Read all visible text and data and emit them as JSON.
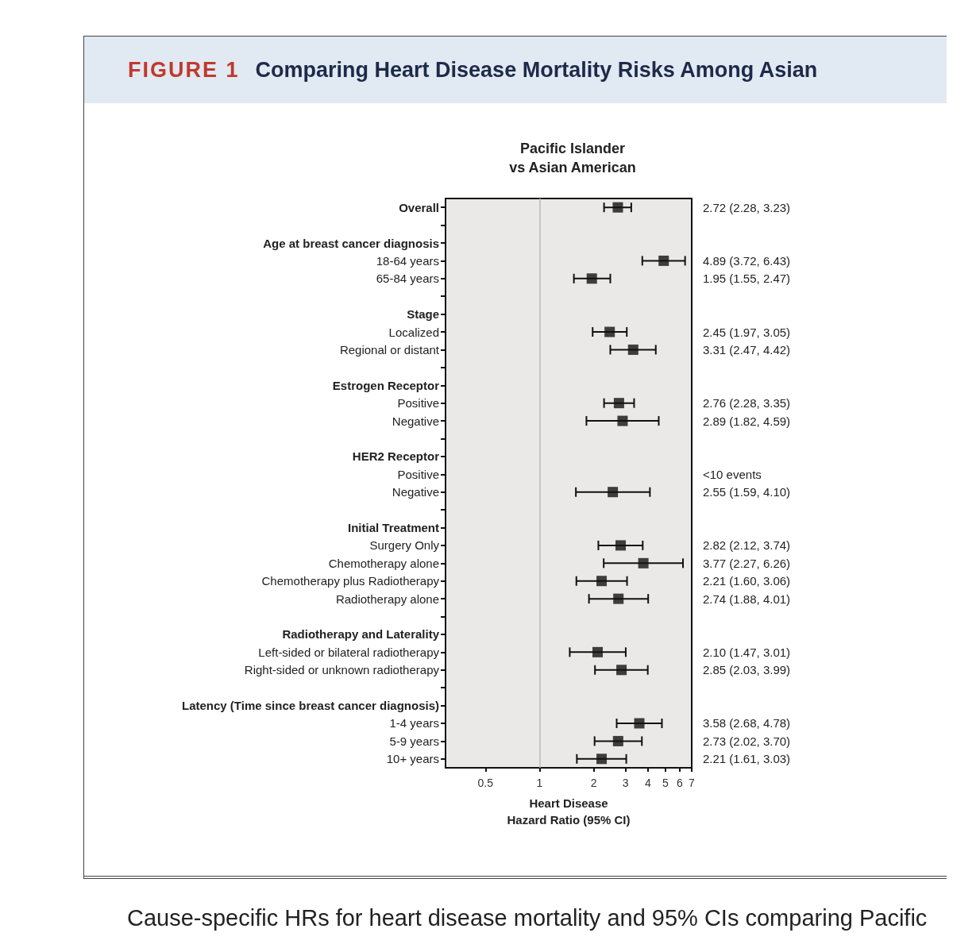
{
  "chart_data": {
    "type": "scatter",
    "title": "Comparing Heart Disease Mortality Risks Among Asian",
    "subtitle": "Pacific Islander\nvs Asian American",
    "xlabel": "Heart Disease\nHazard Ratio (95% CI)",
    "annotations": [
      "FIGURE 1",
      "Cause-specific HRs for heart disease mortality and 95% CIs comparing Pacific"
    ],
    "orientation": "horizontal",
    "log": "x",
    "marker": "square",
    "categories": [
      "Overall",
      null,
      "Age at breast cancer diagnosis",
      "18-64 years",
      "65-84 years",
      null,
      "Stage",
      "Localized",
      "Regional or distant",
      null,
      "Estrogen Receptor",
      "Positive",
      "Negative",
      null,
      "HER2 Receptor",
      "Positive",
      "Negative",
      null,
      "Initial Treatment",
      "Surgery Only",
      "Chemotherapy alone",
      "Chemotherapy plus Radiotherapy",
      "Radiotherapy alone",
      null,
      "Radiotherapy and Laterality",
      "Left-sided or bilateral radiotherapy",
      "Right-sided or unknown radiotherapy",
      null,
      "Latency (Time since breast cancer diagnosis)",
      "1-4 years",
      "5-9 years",
      "10+ years"
    ],
    "series": [
      {
        "color": "#111111",
        "values": [
          2.72,
          null,
          null,
          4.89,
          1.95,
          null,
          null,
          2.45,
          3.31,
          null,
          null,
          2.76,
          2.89,
          null,
          null,
          null,
          2.55,
          null,
          null,
          2.82,
          3.77,
          2.21,
          2.74,
          null,
          null,
          2.1,
          2.85,
          null,
          null,
          3.58,
          2.73,
          2.21
        ],
        "errors": [
          [
            2.28,
            3.23
          ],
          null,
          null,
          [
            3.72,
            6.43
          ],
          [
            1.55,
            2.47
          ],
          null,
          null,
          [
            1.97,
            3.05
          ],
          [
            2.47,
            4.42
          ],
          null,
          null,
          [
            2.28,
            3.35
          ],
          [
            1.82,
            4.59
          ],
          null,
          null,
          null,
          [
            1.59,
            4.1
          ],
          null,
          null,
          [
            2.12,
            3.74
          ],
          [
            2.27,
            6.26
          ],
          [
            1.6,
            3.06
          ],
          [
            1.88,
            4.01
          ],
          null,
          null,
          [
            1.47,
            3.01
          ],
          [
            2.03,
            3.99
          ],
          null,
          null,
          [
            2.68,
            4.78
          ],
          [
            2.02,
            3.7
          ],
          [
            1.61,
            3.03
          ]
        ],
        "value_labels": [
          "2.72 (2.28, 3.23)",
          null,
          null,
          "4.89 (3.72, 6.43)",
          "1.95 (1.55, 2.47)",
          null,
          null,
          "2.45 (1.97, 3.05)",
          "3.31 (2.47, 4.42)",
          null,
          null,
          "2.76 (2.28, 3.35)",
          "2.89 (1.82, 4.59)",
          null,
          null,
          "<10 events",
          "2.55 (1.59, 4.10)",
          null,
          null,
          "2.82 (2.12, 3.74)",
          "3.77 (2.27, 6.26)",
          "2.21 (1.60, 3.06)",
          "2.74 (1.88, 4.01)",
          null,
          null,
          "2.10 (1.47, 3.01)",
          "2.85 (2.03, 3.99)",
          null,
          null,
          "3.58 (2.68, 4.78)",
          "2.73 (2.02, 3.70)",
          "2.21 (1.61, 3.03)"
        ]
      }
    ],
    "xlim": [
      0.3,
      7
    ],
    "xticks": [
      0.5,
      1,
      2,
      3,
      4,
      5,
      6,
      7
    ],
    "ref_lines": [
      {
        "axis": "x",
        "value": 1,
        "color": "#bbbbbb"
      }
    ]
  }
}
